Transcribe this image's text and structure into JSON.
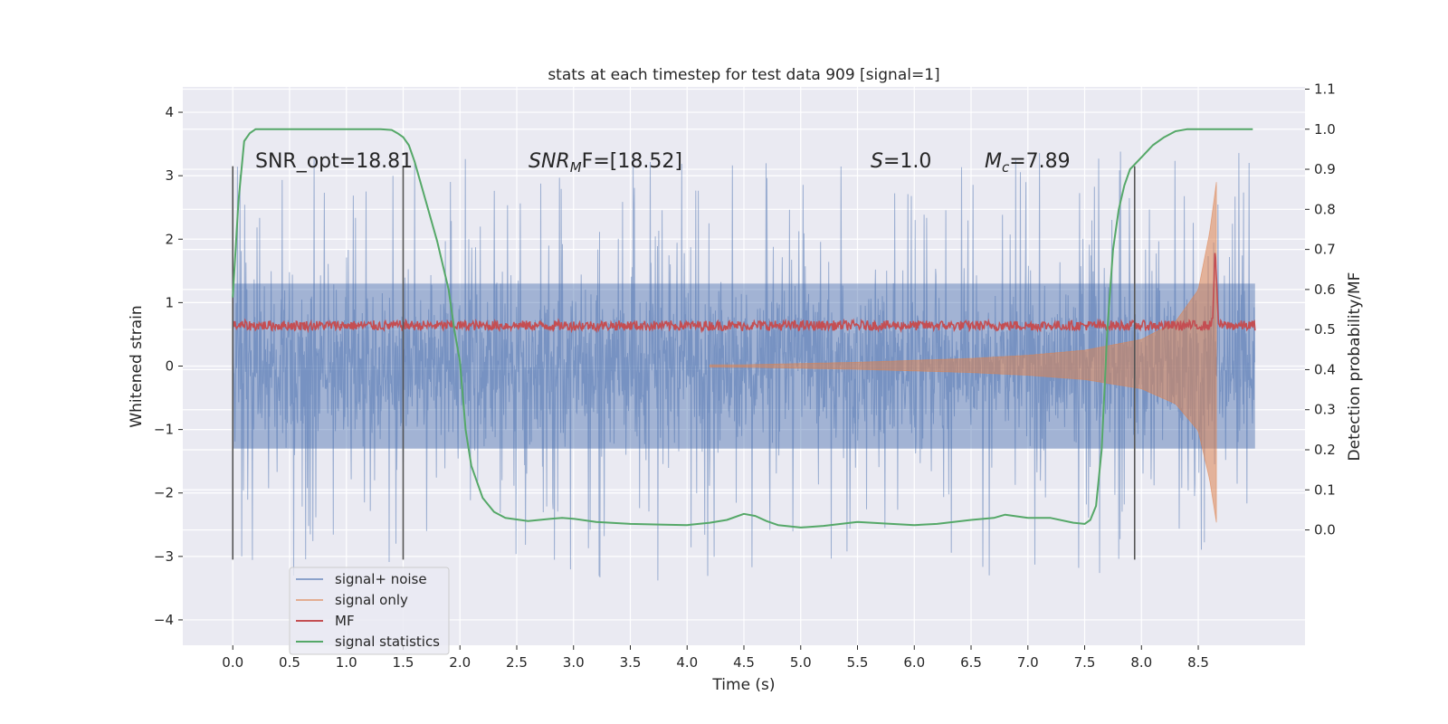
{
  "chart_data": {
    "type": "line",
    "title": "stats at each timestep for test data 909 [signal=1]",
    "xlabel": "Time (s)",
    "ylabel": "Whitened strain",
    "ylabel_right": "Detection probability/MF",
    "xlim": [
      -0.44,
      9.44
    ],
    "ylim": [
      -4.4,
      4.4
    ],
    "ylim_right": [
      -0.2878,
      1.1056
    ],
    "x_ticks": [
      "0.0",
      "0.5",
      "1.0",
      "1.5",
      "2.0",
      "2.5",
      "3.0",
      "3.5",
      "4.0",
      "4.5",
      "5.0",
      "5.5",
      "6.0",
      "6.5",
      "7.0",
      "7.5",
      "8.0",
      "8.5"
    ],
    "x_tick_values": [
      0.0,
      0.5,
      1.0,
      1.5,
      2.0,
      2.5,
      3.0,
      3.5,
      4.0,
      4.5,
      5.0,
      5.5,
      6.0,
      6.5,
      7.0,
      7.5,
      8.0,
      8.5
    ],
    "y_ticks": [
      "−4",
      "−3",
      "−2",
      "−1",
      "0",
      "1",
      "2",
      "3",
      "4"
    ],
    "y_tick_values": [
      -4,
      -3,
      -2,
      -1,
      0,
      1,
      2,
      3,
      4
    ],
    "y_ticks_right": [
      "0.0",
      "0.1",
      "0.2",
      "0.3",
      "0.4",
      "0.5",
      "0.6",
      "0.7",
      "0.8",
      "0.9",
      "1.0",
      "1.1"
    ],
    "y_tick_values_right": [
      0.0,
      0.1,
      0.2,
      0.3,
      0.4,
      0.5,
      0.6,
      0.7,
      0.8,
      0.9,
      1.0,
      1.1
    ],
    "grid": true,
    "legend_position": "lower-left",
    "annotations": {
      "snr_opt": "SNR_opt=18.81",
      "snr_mf_main": "SNR",
      "snr_mf_sub": "M",
      "snr_mf_rest": "F=[18.52]",
      "s_main": "S",
      "s_rest": "=1.0",
      "mc_main": "M",
      "mc_sub": "c",
      "mc_rest": "=7.89"
    },
    "vertical_markers": [
      {
        "x": 0.0,
        "y_range": [
          -3.05,
          3.15
        ]
      },
      {
        "x": 1.5,
        "y_range": [
          -3.05,
          3.15
        ]
      },
      {
        "x": 7.94,
        "y_range": [
          -3.05,
          3.15
        ]
      }
    ],
    "series": [
      {
        "name": "signal+ noise",
        "color": "#4c72b0",
        "description": "whitened noisy strain, amplitude roughly ±1.3 with spikes to ±4",
        "x_range": [
          0.0,
          9.0
        ],
        "envelope_core": 1.3,
        "spike_max": [
          3.8,
          -3.9
        ]
      },
      {
        "name": "signal only",
        "color": "#dd8452",
        "description": "chirp growing in amplitude, peak near t=8.66",
        "x_range": [
          0.0,
          8.66
        ],
        "amplitude": [
          {
            "x": 4.5,
            "a": 0.02
          },
          {
            "x": 5.5,
            "a": 0.06
          },
          {
            "x": 6.5,
            "a": 0.12
          },
          {
            "x": 7.0,
            "a": 0.17
          },
          {
            "x": 7.5,
            "a": 0.25
          },
          {
            "x": 8.0,
            "a": 0.42
          },
          {
            "x": 8.3,
            "a": 0.7
          },
          {
            "x": 8.5,
            "a": 1.2
          },
          {
            "x": 8.6,
            "a": 2.1
          },
          {
            "x": 8.66,
            "a": 2.9
          }
        ]
      },
      {
        "name": "MF",
        "color": "#c44e52",
        "description": "matched filter output (right axis), ~0.5 baseline with peak 0.69 at t=8.65",
        "x_range": [
          0.0,
          9.0
        ],
        "baseline": 0.51,
        "peak": {
          "x": 8.65,
          "y": 0.69
        }
      },
      {
        "name": "signal statistics",
        "color": "#55a868",
        "axis": "right",
        "x": [
          0.0,
          0.05,
          0.1,
          0.15,
          0.2,
          0.3,
          0.5,
          0.8,
          1.0,
          1.2,
          1.3,
          1.4,
          1.45,
          1.5,
          1.55,
          1.6,
          1.7,
          1.8,
          1.9,
          1.95,
          2.0,
          2.05,
          2.1,
          2.2,
          2.3,
          2.4,
          2.6,
          2.8,
          2.9,
          3.0,
          3.2,
          3.5,
          3.8,
          4.0,
          4.2,
          4.35,
          4.5,
          4.6,
          4.7,
          4.8,
          5.0,
          5.2,
          5.5,
          5.8,
          6.0,
          6.2,
          6.5,
          6.7,
          6.8,
          6.9,
          7.0,
          7.2,
          7.4,
          7.5,
          7.55,
          7.6,
          7.65,
          7.7,
          7.75,
          7.8,
          7.85,
          7.9,
          8.0,
          8.1,
          8.2,
          8.3,
          8.4,
          8.6,
          8.8,
          8.98
        ],
        "y": [
          0.58,
          0.82,
          0.97,
          0.99,
          1.0,
          1.0,
          1.0,
          1.0,
          1.0,
          1.0,
          1.0,
          0.998,
          0.99,
          0.98,
          0.96,
          0.92,
          0.82,
          0.72,
          0.6,
          0.5,
          0.42,
          0.25,
          0.16,
          0.08,
          0.045,
          0.03,
          0.022,
          0.028,
          0.03,
          0.028,
          0.02,
          0.015,
          0.013,
          0.012,
          0.018,
          0.025,
          0.04,
          0.035,
          0.022,
          0.012,
          0.006,
          0.01,
          0.02,
          0.015,
          0.012,
          0.015,
          0.025,
          0.03,
          0.038,
          0.034,
          0.03,
          0.03,
          0.018,
          0.015,
          0.025,
          0.06,
          0.2,
          0.5,
          0.7,
          0.8,
          0.86,
          0.9,
          0.93,
          0.96,
          0.98,
          0.995,
          1.0,
          1.0,
          1.0,
          1.0
        ]
      }
    ]
  }
}
